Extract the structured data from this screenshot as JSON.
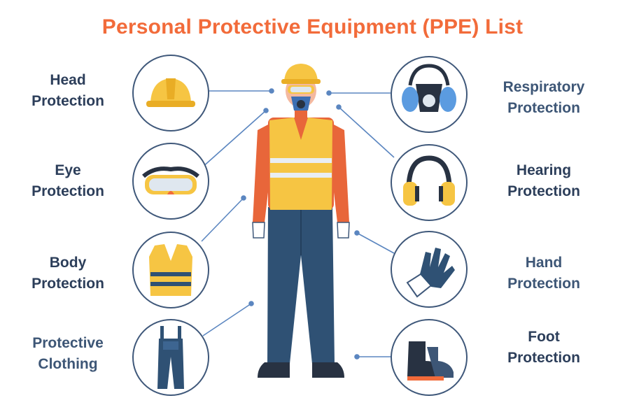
{
  "title": "Personal Protective Equipment (PPE) List",
  "colors": {
    "title_orange": "#f26b3a",
    "label_navy": "#2c3e5a",
    "circle_border": "#3f587a",
    "connector_blue": "#5b86c0",
    "vest_yellow": "#f6c543",
    "pants_blue": "#2f5174"
  },
  "items": {
    "head": {
      "line1": "Head",
      "line2": "Protection",
      "icon": "hard-hat-icon"
    },
    "eye": {
      "line1": "Eye",
      "line2": "Protection",
      "icon": "goggles-icon"
    },
    "body": {
      "line1": "Body",
      "line2": "Protection",
      "icon": "safety-vest-icon"
    },
    "clothing": {
      "line1": "Protective",
      "line2": "Clothing",
      "icon": "overalls-icon"
    },
    "respiratory": {
      "line1": "Respiratory",
      "line2": "Protection",
      "icon": "respirator-icon"
    },
    "hearing": {
      "line1": "Hearing",
      "line2": "Protection",
      "icon": "earmuffs-icon"
    },
    "hand": {
      "line1": "Hand",
      "line2": "Protection",
      "icon": "gloves-icon"
    },
    "foot": {
      "line1": "Foot",
      "line2": "Protection",
      "icon": "boots-icon"
    }
  }
}
